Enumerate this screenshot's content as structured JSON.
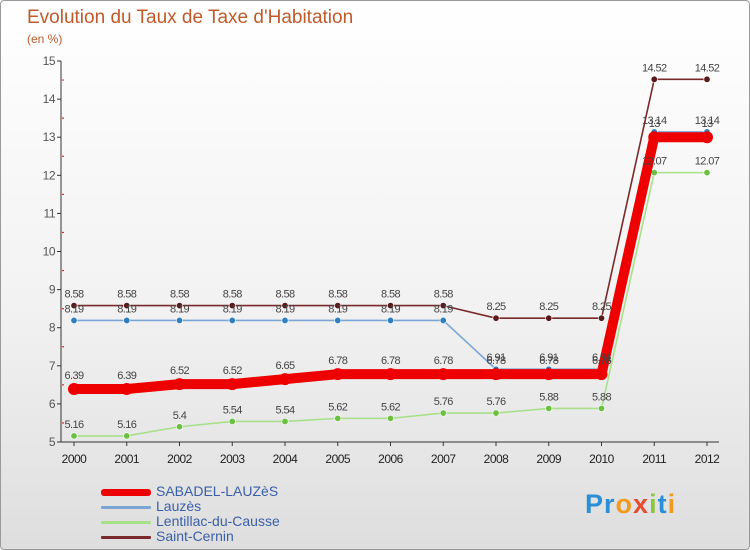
{
  "title": "Evolution du Taux de Taxe d'Habitation",
  "unit_label": "(en %)",
  "logo": {
    "text": "Proxiti",
    "colors": [
      "#2a8fd6",
      "#2a8fd6",
      "#f29a1e",
      "#e84a2e",
      "#8cc63f",
      "#2a8fd6",
      "#f29a1e"
    ]
  },
  "chart_data": {
    "type": "line",
    "title": "Evolution du Taux de Taxe d'Habitation",
    "ylabel": "(en %)",
    "xlabel": "",
    "x": [
      "2000",
      "2001",
      "2002",
      "2003",
      "2004",
      "2005",
      "2006",
      "2007",
      "2008",
      "2009",
      "2010",
      "2011",
      "2012"
    ],
    "ylim": [
      5,
      15
    ],
    "yticks": [
      "5",
      "6",
      "7",
      "8",
      "9",
      "10",
      "11",
      "12",
      "13",
      "14",
      "15"
    ],
    "legend_position": "bottom-left",
    "series": [
      {
        "name": "Saint-Cernin",
        "color": "#7a2a2a",
        "marker": "#5a1a1a",
        "values": [
          8.58,
          8.58,
          8.58,
          8.58,
          8.58,
          8.58,
          8.58,
          8.58,
          8.25,
          8.25,
          8.25,
          14.52,
          14.52
        ],
        "labels": [
          "8.58",
          "8.58",
          "8.58",
          "8.58",
          "8.58",
          "8.58",
          "8.58",
          "8.58",
          "8.25",
          "8.25",
          "8.25",
          "14.52",
          "14.52"
        ]
      },
      {
        "name": "Lauzès",
        "color": "#7aa6d6",
        "marker": "#2f7fc0",
        "values": [
          8.19,
          8.19,
          8.19,
          8.19,
          8.19,
          8.19,
          8.19,
          8.19,
          6.91,
          6.91,
          6.91,
          13.14,
          13.14
        ],
        "labels": [
          "8.19",
          "8.19",
          "8.19",
          "8.19",
          "8.19",
          "8.19",
          "8.19",
          "8.19",
          "6.91",
          "6.91",
          "6.91",
          "13.14",
          "13.14"
        ]
      },
      {
        "name": "Lentillac-du-Causse",
        "color": "#a8e08a",
        "marker": "#6cc040",
        "values": [
          5.16,
          5.16,
          5.4,
          5.54,
          5.54,
          5.62,
          5.62,
          5.76,
          5.76,
          5.88,
          5.88,
          12.07,
          12.07
        ],
        "labels": [
          "5.16",
          "5.16",
          "5.4",
          "5.54",
          "5.54",
          "5.62",
          "5.62",
          "5.76",
          "5.76",
          "5.88",
          "5.88",
          "12.07",
          "12.07"
        ]
      },
      {
        "name": "SABADEL-LAUZèS",
        "color": "#ee0000",
        "marker": "#ee0000",
        "thick": true,
        "values": [
          6.39,
          6.39,
          6.52,
          6.52,
          6.65,
          6.78,
          6.78,
          6.78,
          6.78,
          6.78,
          6.78,
          13.0,
          13.0
        ],
        "labels": [
          "6.39",
          "6.39",
          "6.52",
          "6.52",
          "6.65",
          "6.78",
          "6.78",
          "6.78",
          "6.78",
          "6.78",
          "6.78",
          "13",
          "13"
        ]
      }
    ]
  },
  "legend": {
    "items": [
      {
        "label": "SABADEL-LAUZèS",
        "color": "#ee0000",
        "thick": true
      },
      {
        "label": "Lauzès",
        "color": "#7aa6d6",
        "thick": false
      },
      {
        "label": "Lentillac-du-Causse",
        "color": "#a8e08a",
        "thick": false
      },
      {
        "label": "Saint-Cernin",
        "color": "#7a2a2a",
        "thick": false
      }
    ]
  }
}
